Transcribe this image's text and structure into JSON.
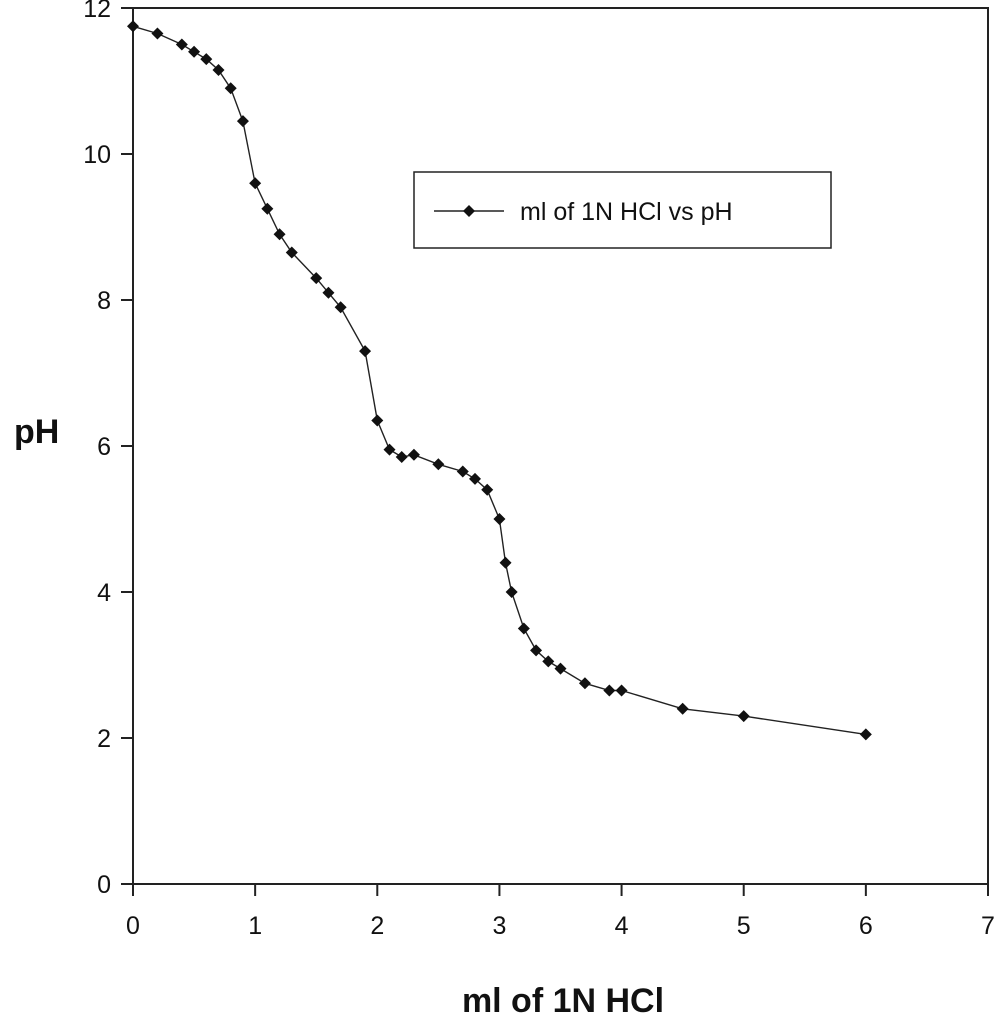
{
  "chart_data": {
    "type": "line",
    "title": "",
    "xlabel": "ml of 1N HCl",
    "ylabel": "pH",
    "xlim": [
      0,
      7
    ],
    "ylim": [
      0,
      12
    ],
    "xticks": [
      0,
      1,
      2,
      3,
      4,
      5,
      6,
      7
    ],
    "yticks": [
      0,
      2,
      4,
      6,
      8,
      10,
      12
    ],
    "grid": false,
    "legend_position": "top-right",
    "marker": "diamond",
    "colors": {
      "line": "#222222",
      "marker": "#111111",
      "frame": "#222222"
    },
    "series": [
      {
        "name": "ml of 1N HCl vs pH",
        "x": [
          0,
          0.2,
          0.4,
          0.5,
          0.6,
          0.7,
          0.8,
          0.9,
          1.0,
          1.1,
          1.2,
          1.3,
          1.5,
          1.6,
          1.7,
          1.9,
          2.0,
          2.1,
          2.2,
          2.3,
          2.5,
          2.7,
          2.8,
          2.9,
          3.0,
          3.05,
          3.1,
          3.2,
          3.3,
          3.4,
          3.5,
          3.7,
          3.9,
          4.0,
          4.5,
          5.0,
          6.0
        ],
        "y": [
          11.75,
          11.65,
          11.5,
          11.4,
          11.3,
          11.15,
          10.9,
          10.45,
          9.6,
          9.25,
          8.9,
          8.65,
          8.3,
          8.1,
          7.9,
          7.3,
          6.35,
          5.95,
          5.85,
          5.88,
          5.75,
          5.65,
          5.55,
          5.4,
          5.0,
          4.4,
          4.0,
          3.5,
          3.2,
          3.05,
          2.95,
          2.75,
          2.65,
          2.65,
          2.4,
          2.3,
          2.05
        ]
      }
    ]
  }
}
